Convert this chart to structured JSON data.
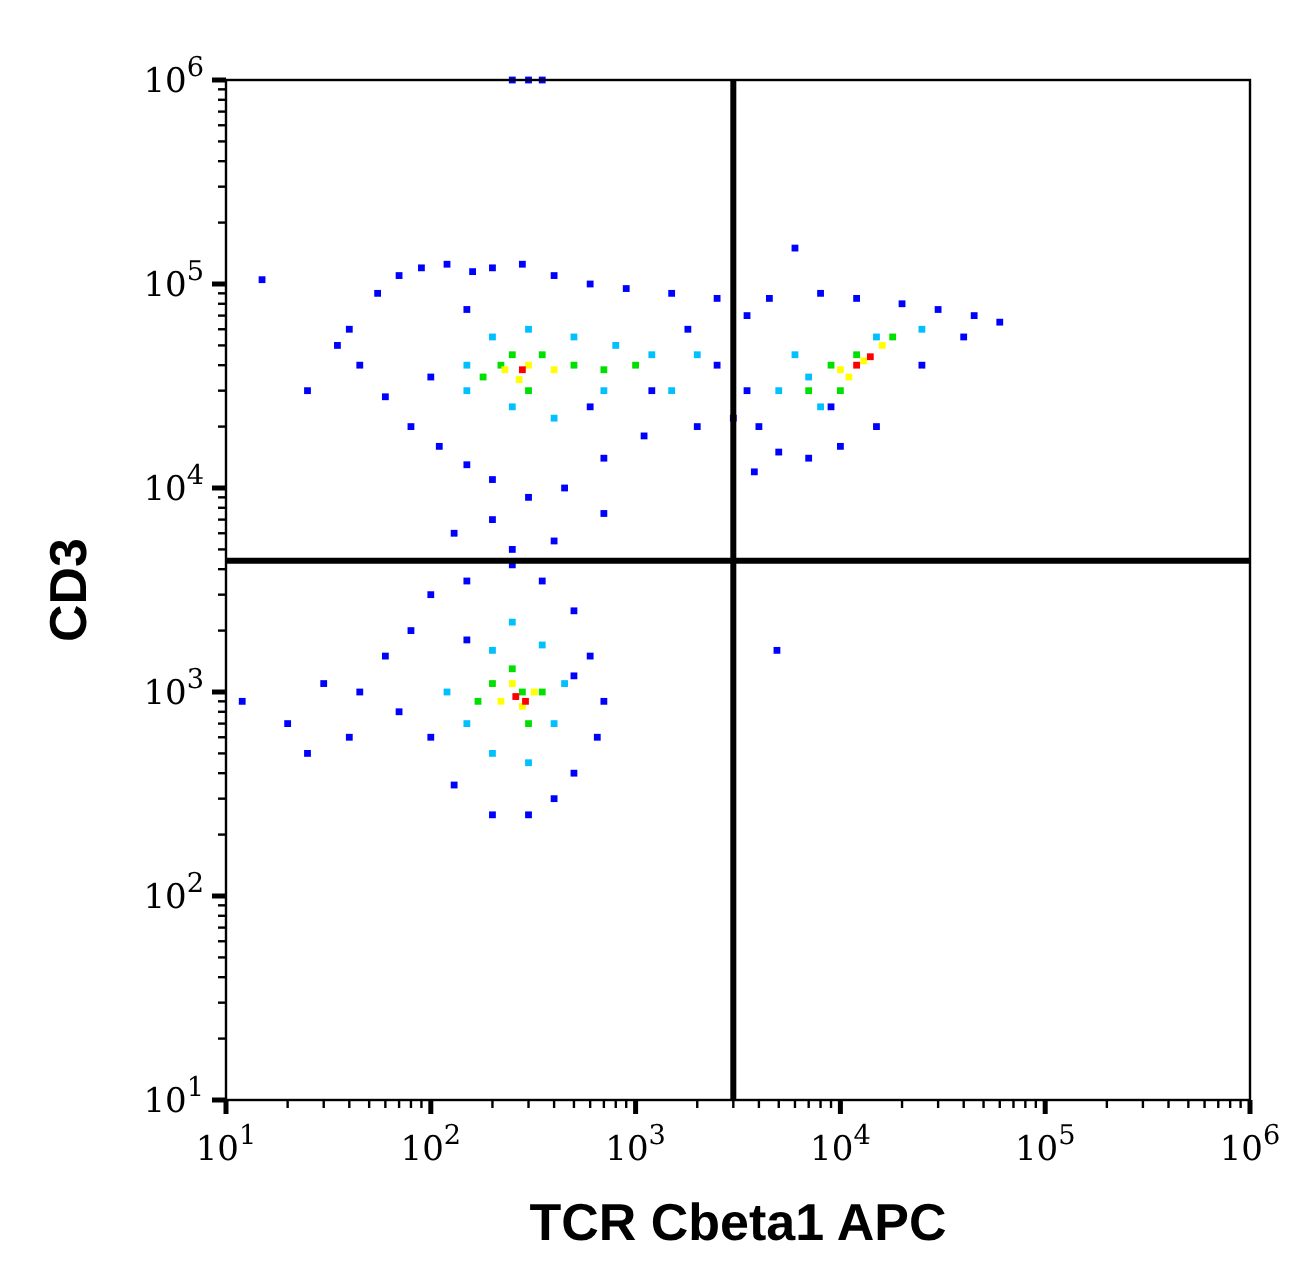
{
  "chart_data": {
    "type": "scatter",
    "xlabel": "TCR Cbeta1 APC",
    "ylabel": "CD3",
    "log": "xy",
    "grid": false,
    "marker": "square",
    "xlim": [
      10,
      1000000
    ],
    "ylim": [
      10,
      1000000
    ],
    "xticks": [
      {
        "value": 10,
        "label": "10$^{1}$"
      },
      {
        "value": 20,
        "label": null
      },
      {
        "value": 30,
        "label": null
      },
      {
        "value": 40,
        "label": null
      },
      {
        "value": 50,
        "label": null
      },
      {
        "value": 60,
        "label": null
      },
      {
        "value": 70,
        "label": null
      },
      {
        "value": 80,
        "label": null
      },
      {
        "value": 90,
        "label": null
      },
      {
        "value": 100,
        "label": "10$^{2}$"
      },
      {
        "value": 200,
        "label": null
      },
      {
        "value": 300,
        "label": null
      },
      {
        "value": 400,
        "label": null
      },
      {
        "value": 500,
        "label": null
      },
      {
        "value": 600,
        "label": null
      },
      {
        "value": 700,
        "label": null
      },
      {
        "value": 800,
        "label": null
      },
      {
        "value": 900,
        "label": null
      },
      {
        "value": 1000,
        "label": "10$^{3}$"
      },
      {
        "value": 2000,
        "label": null
      },
      {
        "value": 3000,
        "label": null
      },
      {
        "value": 4000,
        "label": null
      },
      {
        "value": 5000,
        "label": null
      },
      {
        "value": 6000,
        "label": null
      },
      {
        "value": 7000,
        "label": null
      },
      {
        "value": 8000,
        "label": null
      },
      {
        "value": 9000,
        "label": null
      },
      {
        "value": 10000,
        "label": "10$^{4}$"
      },
      {
        "value": 20000,
        "label": null
      },
      {
        "value": 30000,
        "label": null
      },
      {
        "value": 40000,
        "label": null
      },
      {
        "value": 50000,
        "label": null
      },
      {
        "value": 60000,
        "label": null
      },
      {
        "value": 70000,
        "label": null
      },
      {
        "value": 80000,
        "label": null
      },
      {
        "value": 90000,
        "label": null
      },
      {
        "value": 100000,
        "label": "10$^{5}$"
      },
      {
        "value": 200000,
        "label": null
      },
      {
        "value": 300000,
        "label": null
      },
      {
        "value": 400000,
        "label": null
      },
      {
        "value": 500000,
        "label": null
      },
      {
        "value": 600000,
        "label": null
      },
      {
        "value": 700000,
        "label": null
      },
      {
        "value": 800000,
        "label": null
      },
      {
        "value": 900000,
        "label": null
      },
      {
        "value": 1000000,
        "label": "10$^{6}$"
      }
    ],
    "yticks": [
      {
        "value": 10,
        "label": "10$^{1}$"
      },
      {
        "value": 20,
        "label": null
      },
      {
        "value": 30,
        "label": null
      },
      {
        "value": 40,
        "label": null
      },
      {
        "value": 50,
        "label": null
      },
      {
        "value": 60,
        "label": null
      },
      {
        "value": 70,
        "label": null
      },
      {
        "value": 80,
        "label": null
      },
      {
        "value": 90,
        "label": null
      },
      {
        "value": 100,
        "label": "10$^{2}$"
      },
      {
        "value": 200,
        "label": null
      },
      {
        "value": 300,
        "label": null
      },
      {
        "value": 400,
        "label": null
      },
      {
        "value": 500,
        "label": null
      },
      {
        "value": 600,
        "label": null
      },
      {
        "value": 700,
        "label": null
      },
      {
        "value": 800,
        "label": null
      },
      {
        "value": 900,
        "label": null
      },
      {
        "value": 1000,
        "label": "10$^{3}$"
      },
      {
        "value": 2000,
        "label": null
      },
      {
        "value": 3000,
        "label": null
      },
      {
        "value": 4000,
        "label": null
      },
      {
        "value": 5000,
        "label": null
      },
      {
        "value": 6000,
        "label": null
      },
      {
        "value": 7000,
        "label": null
      },
      {
        "value": 8000,
        "label": null
      },
      {
        "value": 9000,
        "label": null
      },
      {
        "value": 10000,
        "label": "10$^{4}$"
      },
      {
        "value": 20000,
        "label": null
      },
      {
        "value": 30000,
        "label": null
      },
      {
        "value": 40000,
        "label": null
      },
      {
        "value": 50000,
        "label": null
      },
      {
        "value": 60000,
        "label": null
      },
      {
        "value": 70000,
        "label": null
      },
      {
        "value": 80000,
        "label": null
      },
      {
        "value": 90000,
        "label": null
      },
      {
        "value": 100000,
        "label": "10$^{5}$"
      },
      {
        "value": 200000,
        "label": null
      },
      {
        "value": 300000,
        "label": null
      },
      {
        "value": 400000,
        "label": null
      },
      {
        "value": 500000,
        "label": null
      },
      {
        "value": 600000,
        "label": null
      },
      {
        "value": 700000,
        "label": null
      },
      {
        "value": 800000,
        "label": null
      },
      {
        "value": 900000,
        "label": null
      },
      {
        "value": 1000000,
        "label": "10$^{6}$"
      }
    ],
    "ref_lines": [
      {
        "axis": "x",
        "value": 3000,
        "color": "#000000"
      },
      {
        "axis": "y",
        "value": 4400,
        "color": "#000000"
      }
    ],
    "series": [
      {
        "color": "#0000ff",
        "x": [
          15,
          40,
          55,
          70,
          90,
          120,
          160,
          200,
          280,
          400,
          600,
          900,
          1500,
          2500,
          45,
          60,
          80,
          110,
          150,
          200,
          300,
          450,
          700,
          1100,
          2000,
          3000,
          130,
          250,
          400,
          700,
          200,
          25,
          35,
          1200,
          1800,
          2500,
          600,
          150,
          100,
          3500,
          4500,
          6000,
          8000,
          12000,
          20000,
          30000,
          45000,
          60000,
          40000,
          4000,
          5000,
          7000,
          10000,
          15000,
          3500,
          3800,
          25000,
          9000,
          12,
          20,
          30,
          45,
          60,
          80,
          100,
          150,
          250,
          350,
          500,
          600,
          700,
          650,
          500,
          400,
          300,
          200,
          130,
          100,
          70,
          40,
          25,
          150,
          500,
          4900,
          250,
          300,
          350
        ],
        "values": [
          105000,
          60000,
          90000,
          110000,
          120000,
          125000,
          115000,
          120000,
          125000,
          110000,
          100000,
          95000,
          90000,
          85000,
          40000,
          28000,
          20000,
          16000,
          13000,
          11000,
          9000,
          10000,
          14000,
          18000,
          20000,
          22000,
          6000,
          5000,
          5500,
          7500,
          7000,
          30000,
          50000,
          30000,
          60000,
          40000,
          25000,
          75000,
          35000,
          70000,
          85000,
          150000,
          90000,
          85000,
          80000,
          75000,
          70000,
          65000,
          55000,
          20000,
          15000,
          14000,
          16000,
          20000,
          30000,
          12000,
          40000,
          25000,
          900,
          700,
          1100,
          1000,
          1500,
          2000,
          3000,
          3500,
          4200,
          3500,
          2500,
          1500,
          900,
          600,
          400,
          300,
          250,
          250,
          350,
          600,
          800,
          600,
          500,
          1800,
          1200,
          1600,
          1000000,
          1000000,
          1000000
        ]
      },
      {
        "color": "#00c0ff",
        "x": [
          150,
          200,
          300,
          500,
          800,
          1200,
          2000,
          250,
          400,
          700,
          150,
          1500,
          5000,
          6000,
          8000,
          15000,
          25000,
          7000,
          120,
          150,
          200,
          300,
          400,
          450,
          350,
          200,
          250
        ],
        "values": [
          40000,
          55000,
          60000,
          55000,
          50000,
          45000,
          45000,
          25000,
          22000,
          30000,
          30000,
          30000,
          30000,
          45000,
          25000,
          55000,
          60000,
          35000,
          1000,
          700,
          500,
          450,
          700,
          1100,
          1700,
          1600,
          2200
        ]
      },
      {
        "color": "#00e000",
        "x": [
          180,
          250,
          350,
          500,
          700,
          300,
          1000,
          220,
          7000,
          9000,
          12000,
          18000,
          10000,
          170,
          250,
          350,
          300,
          200,
          280
        ],
        "values": [
          35000,
          45000,
          45000,
          40000,
          38000,
          30000,
          40000,
          40000,
          30000,
          40000,
          45000,
          55000,
          30000,
          900,
          1300,
          1000,
          700,
          1100,
          1000
        ]
      },
      {
        "color": "#ffff00",
        "x": [
          230,
          300,
          400,
          270,
          10000,
          13000,
          16000,
          11000,
          220,
          280,
          320,
          250
        ],
        "values": [
          38000,
          40000,
          38000,
          34000,
          38000,
          42000,
          50000,
          35000,
          900,
          850,
          1000,
          1100
        ]
      },
      {
        "color": "#ff0000",
        "x": [
          280,
          12000,
          14000,
          260,
          290
        ],
        "values": [
          38000,
          40000,
          44000,
          950,
          900
        ]
      }
    ]
  }
}
